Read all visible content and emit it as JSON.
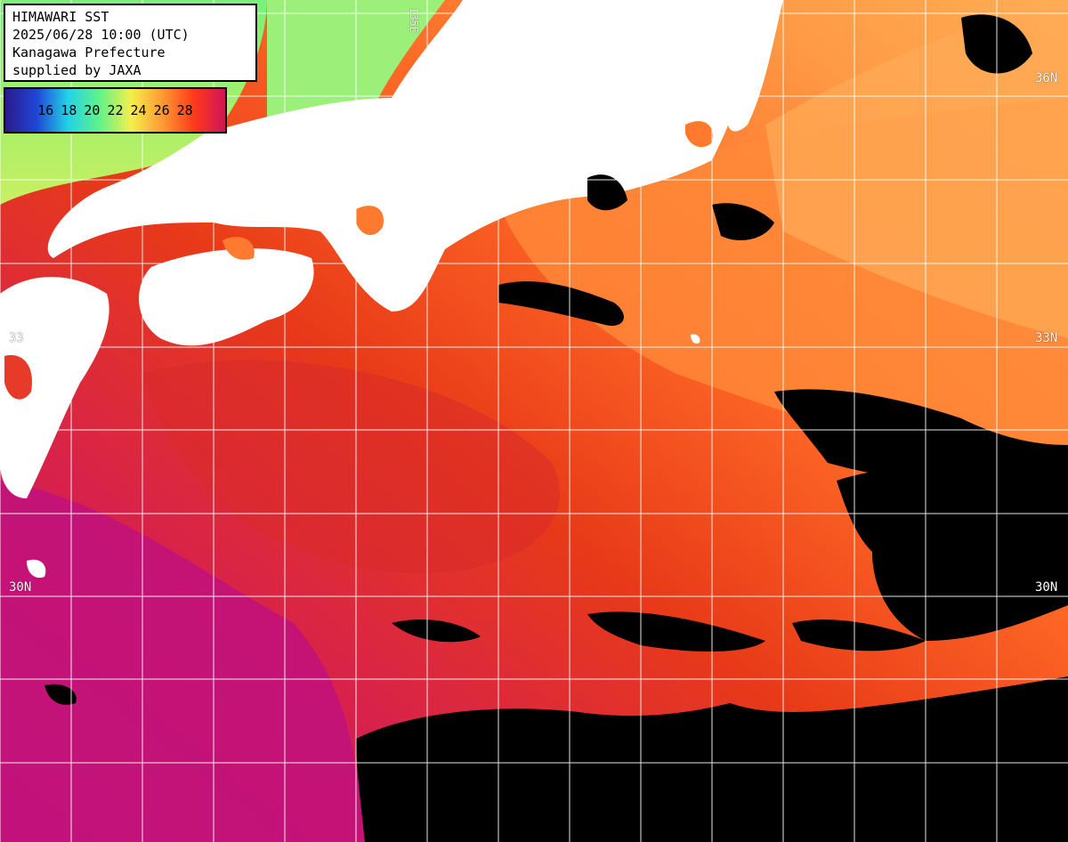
{
  "info": {
    "line1": "HIMAWARI SST",
    "line2": "2025/06/28 10:00 (UTC)",
    "line3": "Kanagawa Prefecture",
    "line4": "supplied by JAXA"
  },
  "legend": {
    "ticks": [
      "16",
      "18",
      "20",
      "22",
      "24",
      "26",
      "28"
    ],
    "gradient": [
      "#2b1a8c",
      "#1f46d6",
      "#23d3e6",
      "#61f28a",
      "#f4ef4d",
      "#ff9a33",
      "#ff3a1a",
      "#d0135a"
    ]
  },
  "grid": {
    "lat_labels_left": [
      "33",
      "30N"
    ],
    "lat_labels_right": [
      "36N",
      "33N",
      "30N"
    ],
    "lon_label_top": "135E",
    "color": "#ffffff"
  },
  "colors": {
    "land": "#ffffff",
    "cloud": "#000000",
    "sst_warm": "#e53a18",
    "sst_hot": "#c4157e",
    "sst_mid": "#ff7a2e",
    "sst_cool": "#ffad55",
    "coastal_green": "#86f07a"
  }
}
